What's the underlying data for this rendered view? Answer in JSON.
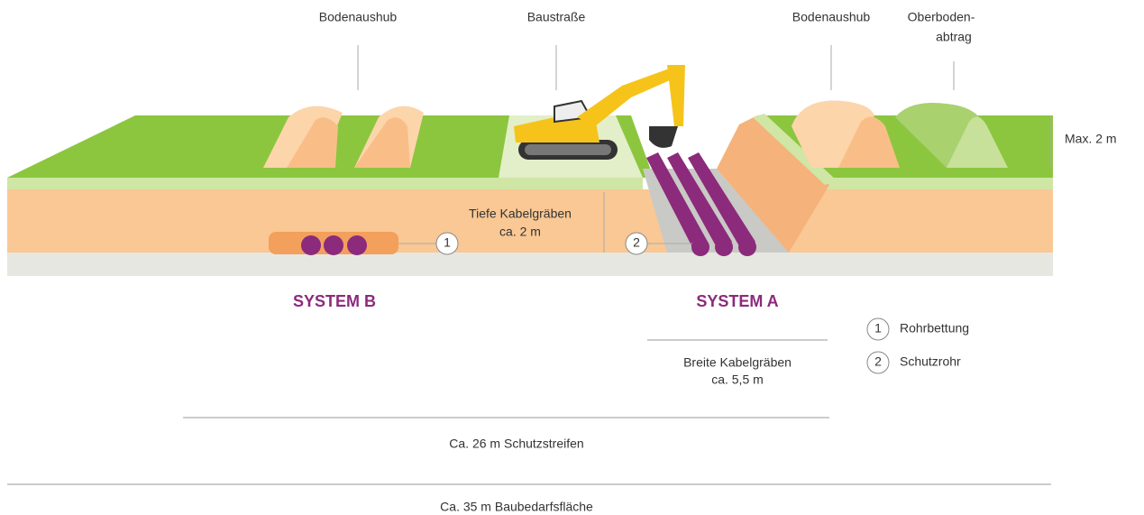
{
  "labels": {
    "bodenaushub_left": "Bodenaushub",
    "baustrasse": "Baustraße",
    "bodenaushub_right": "Bodenaushub",
    "oberbodenabtrag": [
      "Oberboden-",
      "abtrag"
    ],
    "max_height": "Max. 2 m",
    "deep_trenches": [
      "Tiefe Kabelgräben",
      "ca. 2 m"
    ],
    "wide_trenches": [
      "Breite Kabelgräben",
      "ca. 5,5 m"
    ]
  },
  "markers": [
    "1",
    "2"
  ],
  "systems": [
    "SYSTEM B",
    "SYSTEM A"
  ],
  "legend": [
    {
      "number": "1",
      "label": "Rohrbettung"
    },
    {
      "number": "2",
      "label": "Schutzrohr"
    }
  ],
  "dimensions": {
    "protection_strip": "Ca. 26 m Schutzstreifen",
    "construction_area": "Ca. 35 m Baubedarfsfläche"
  }
}
